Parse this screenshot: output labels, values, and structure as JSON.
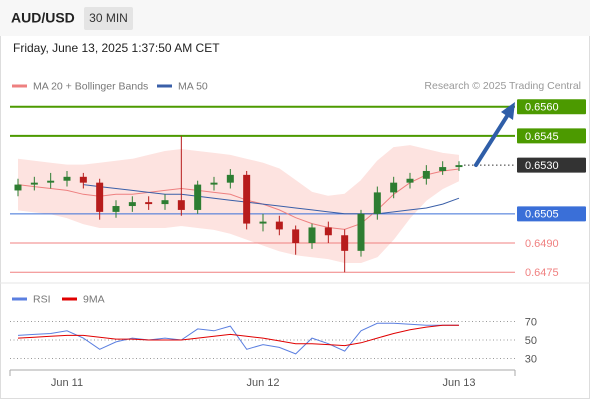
{
  "header": {
    "symbol": "AUD/USD",
    "timeframe": "30 MIN",
    "datetime": "Friday, June 13, 2025 1:37:50 AM CET",
    "source": "Research © 2025 Trading Central"
  },
  "chart_data": [
    {
      "type": "candlestick",
      "up_color": "#2e7d32",
      "down_color": "#b71c1c",
      "open": [
        0.6517,
        0.652,
        0.6521,
        0.6522,
        0.6524,
        0.6521,
        0.6506,
        0.6509,
        0.6511,
        0.651,
        0.6512,
        0.6507,
        0.652,
        0.6521,
        0.6525,
        0.65,
        0.6501,
        0.6497,
        0.649,
        0.6498,
        0.6494,
        0.6486,
        0.6505,
        0.6516,
        0.6521,
        0.6523,
        0.6527,
        0.6529
      ],
      "high": [
        0.6523,
        0.6524,
        0.6526,
        0.6527,
        0.6526,
        0.6523,
        0.6512,
        0.6514,
        0.6514,
        0.6515,
        0.6545,
        0.6522,
        0.6524,
        0.6528,
        0.6527,
        0.6505,
        0.6504,
        0.6499,
        0.65,
        0.6501,
        0.6497,
        0.6507,
        0.6519,
        0.6524,
        0.6526,
        0.653,
        0.6532,
        0.6532
      ],
      "low": [
        0.6514,
        0.6517,
        0.6518,
        0.6519,
        0.6518,
        0.6502,
        0.6503,
        0.6506,
        0.6507,
        0.6507,
        0.6504,
        0.6505,
        0.6517,
        0.6518,
        0.6497,
        0.6496,
        0.6494,
        0.6484,
        0.6487,
        0.649,
        0.6475,
        0.6483,
        0.6502,
        0.6513,
        0.6518,
        0.652,
        0.6525,
        0.6527
      ],
      "close": [
        0.652,
        0.6521,
        0.6522,
        0.6524,
        0.6521,
        0.6506,
        0.6509,
        0.6511,
        0.651,
        0.6512,
        0.6507,
        0.652,
        0.6521,
        0.6525,
        0.65,
        0.6501,
        0.6497,
        0.649,
        0.6498,
        0.6494,
        0.6486,
        0.6505,
        0.6516,
        0.6521,
        0.6523,
        0.6527,
        0.6529,
        0.653
      ],
      "series": [
        {
          "name": "MA 20 + Bollinger Bands",
          "color": "#ee8080",
          "fill": "#fde3e0",
          "values": [
            0.652,
            0.6519,
            0.6518,
            0.6517,
            0.6515,
            0.6514,
            0.6515,
            0.6515,
            0.6516,
            0.6517,
            0.6518,
            0.6517,
            0.6516,
            0.6515,
            0.6512,
            0.651,
            0.6507,
            0.6503,
            0.65,
            0.6498,
            0.6497,
            0.65,
            0.6507,
            0.6515,
            0.6521,
            0.6525,
            0.6527,
            0.6528
          ],
          "upper": [
            0.6533,
            0.6532,
            0.6531,
            0.653,
            0.653,
            0.6531,
            0.6532,
            0.6533,
            0.6535,
            0.6537,
            0.6538,
            0.6537,
            0.6536,
            0.6535,
            0.6533,
            0.6531,
            0.6528,
            0.6522,
            0.6516,
            0.6514,
            0.6515,
            0.6522,
            0.6532,
            0.6539,
            0.654,
            0.6538,
            0.6536,
            0.6535
          ],
          "lower": [
            0.6507,
            0.6506,
            0.6505,
            0.6503,
            0.65,
            0.6498,
            0.6498,
            0.6498,
            0.6498,
            0.6498,
            0.6499,
            0.6498,
            0.6497,
            0.6495,
            0.6492,
            0.6489,
            0.6486,
            0.6484,
            0.6483,
            0.6482,
            0.648,
            0.648,
            0.6483,
            0.6492,
            0.6503,
            0.6512,
            0.6518,
            0.6522
          ]
        },
        {
          "name": "MA 50",
          "color": "#3a5fa8",
          "values": [
            null,
            null,
            null,
            null,
            0.652,
            0.6519,
            0.6518,
            0.6517,
            0.6516,
            0.6515,
            0.6515,
            0.6514,
            0.6513,
            0.6512,
            0.6511,
            0.651,
            0.6509,
            0.6508,
            0.6507,
            0.6506,
            0.6505,
            0.6505,
            0.6505,
            0.6506,
            0.6507,
            0.6508,
            0.651,
            0.6513
          ]
        }
      ],
      "levels": [
        {
          "value": {
            "value": 0.656,
            "label": "0.6560"
          },
          "color": "#4c9a00",
          "style": "box"
        },
        {
          "value": {
            "value": 0.6545,
            "label": "0.6545"
          },
          "color": "#4c9a00",
          "style": "box"
        },
        {
          "value": {
            "value": 0.653,
            "label": "0.6530"
          },
          "color": "#333333",
          "style": "current"
        },
        {
          "value": {
            "value": 0.6505,
            "label": "0.6505"
          },
          "color": "#3a6fd8",
          "style": "box"
        },
        {
          "value": {
            "value": 0.649,
            "label": "0.6490"
          },
          "color": "#f08080",
          "style": "text"
        },
        {
          "value": {
            "value": 0.6475,
            "label": "0.6475"
          },
          "color": "#f08080",
          "style": "text"
        }
      ],
      "ylim": [
        0.647,
        0.6566
      ]
    },
    {
      "type": "line",
      "categories": [
        null,
        null,
        null,
        "Jun 11",
        null,
        null,
        null,
        null,
        null,
        null,
        null,
        null,
        null,
        null,
        null,
        "Jun 12",
        null,
        null,
        null,
        null,
        null,
        null,
        null,
        null,
        null,
        null,
        null,
        "Jun 13"
      ],
      "series": [
        {
          "name": "RSI",
          "color": "#5b7fe0",
          "values": [
            55,
            56,
            57,
            60,
            52,
            40,
            48,
            52,
            50,
            52,
            50,
            62,
            60,
            65,
            40,
            45,
            42,
            35,
            52,
            46,
            38,
            60,
            68,
            68,
            67,
            66,
            66,
            66
          ]
        },
        {
          "name": "9MA",
          "color": "#e00000",
          "values": [
            52,
            53,
            54,
            55,
            55,
            53,
            51,
            51,
            50,
            50,
            50,
            52,
            54,
            56,
            54,
            52,
            49,
            46,
            46,
            45,
            44,
            47,
            52,
            57,
            61,
            64,
            66,
            66
          ]
        }
      ],
      "ylim": [
        20,
        86
      ],
      "yticks": [
        30,
        50,
        70
      ],
      "grid": true
    }
  ]
}
